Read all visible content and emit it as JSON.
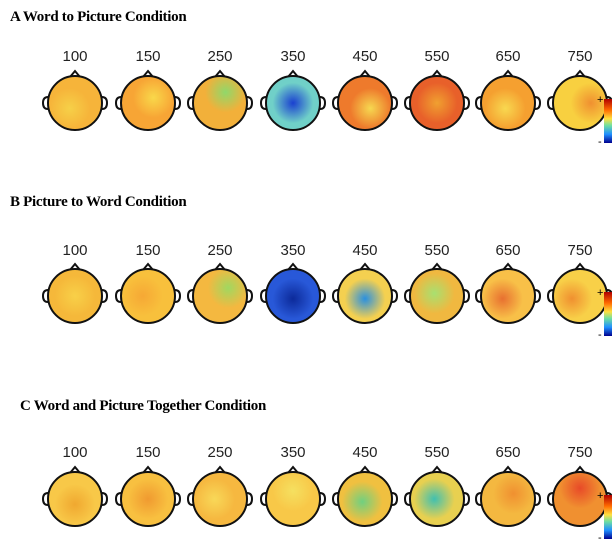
{
  "panels": [
    {
      "title": "A Word to Picture Condition",
      "times": [
        "100",
        "150",
        "250",
        "350",
        "450",
        "550",
        "650",
        "750"
      ],
      "colorbar": {
        "max_label": "+",
        "min_label": "-"
      }
    },
    {
      "title": "B Picture to Word Condition",
      "times": [
        "100",
        "150",
        "250",
        "350",
        "450",
        "550",
        "650",
        "750"
      ],
      "colorbar": {
        "max_label": "+",
        "min_label": "-"
      }
    },
    {
      "title": "C Word and Picture Together Condition",
      "times": [
        "100",
        "150",
        "250",
        "350",
        "450",
        "550",
        "650",
        "750"
      ],
      "colorbar": {
        "max_label": "+",
        "min_label": "-"
      }
    }
  ]
}
